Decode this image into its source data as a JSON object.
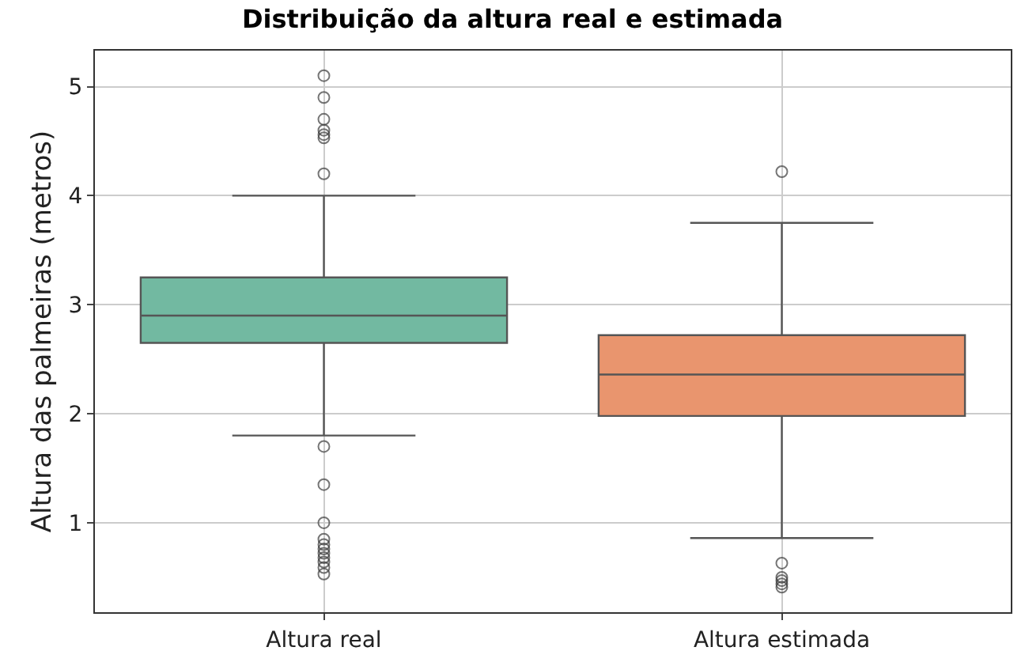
{
  "chart_data": {
    "type": "box",
    "title": "Distribuição da altura real e estimada",
    "ylabel": "Altura das palmeiras (metros)",
    "categories": [
      "Altura real",
      "Altura estimada"
    ],
    "colors": [
      "#72b9a1",
      "#e9956e"
    ],
    "boxes": [
      {
        "low": 1.8,
        "q1": 2.65,
        "median": 2.9,
        "q3": 3.25,
        "high": 4.0,
        "outliers": [
          5.1,
          4.9,
          4.7,
          4.6,
          4.56,
          4.53,
          4.2,
          1.7,
          1.35,
          1.0,
          0.85,
          0.8,
          0.76,
          0.72,
          0.68,
          0.64,
          0.59,
          0.53
        ]
      },
      {
        "low": 0.86,
        "q1": 1.98,
        "median": 2.36,
        "q3": 2.72,
        "high": 3.75,
        "outliers": [
          4.22,
          0.63,
          0.5,
          0.47,
          0.44,
          0.41
        ]
      }
    ],
    "ylim": [
      0.18,
      5.33
    ],
    "yticks": [
      1,
      2,
      3,
      4,
      5
    ],
    "grid": true
  }
}
